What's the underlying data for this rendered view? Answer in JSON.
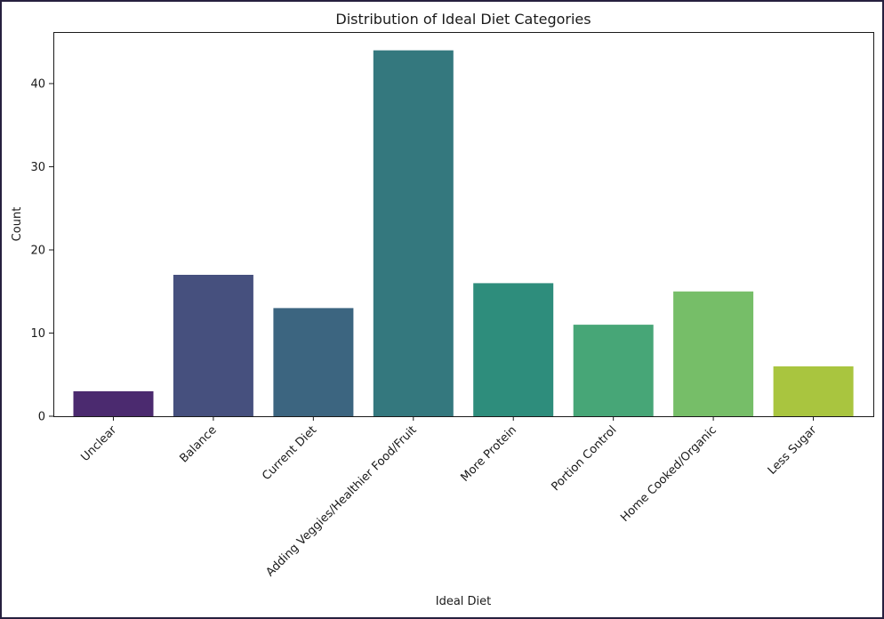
{
  "chart_data": {
    "type": "bar",
    "title": "Distribution of Ideal Diet Categories",
    "xlabel": "Ideal Diet",
    "ylabel": "Count",
    "categories": [
      "Unclear",
      "Balance",
      "Current Diet",
      "Adding Veggies/Healthier Food/Fruit",
      "More Protein",
      "Portion Control",
      "Home Cooked/Organic",
      "Less Sugar"
    ],
    "values": [
      3,
      17,
      13,
      44,
      16,
      11,
      15,
      6
    ],
    "colors": [
      "#4b2a6f",
      "#46507e",
      "#3c6580",
      "#34787e",
      "#2e8d7c",
      "#47a677",
      "#76be68",
      "#a9c53f"
    ],
    "ylim": [
      0,
      46.2
    ],
    "yticks": [
      0,
      10,
      20,
      30,
      40
    ],
    "grid": false,
    "legend": "none"
  }
}
